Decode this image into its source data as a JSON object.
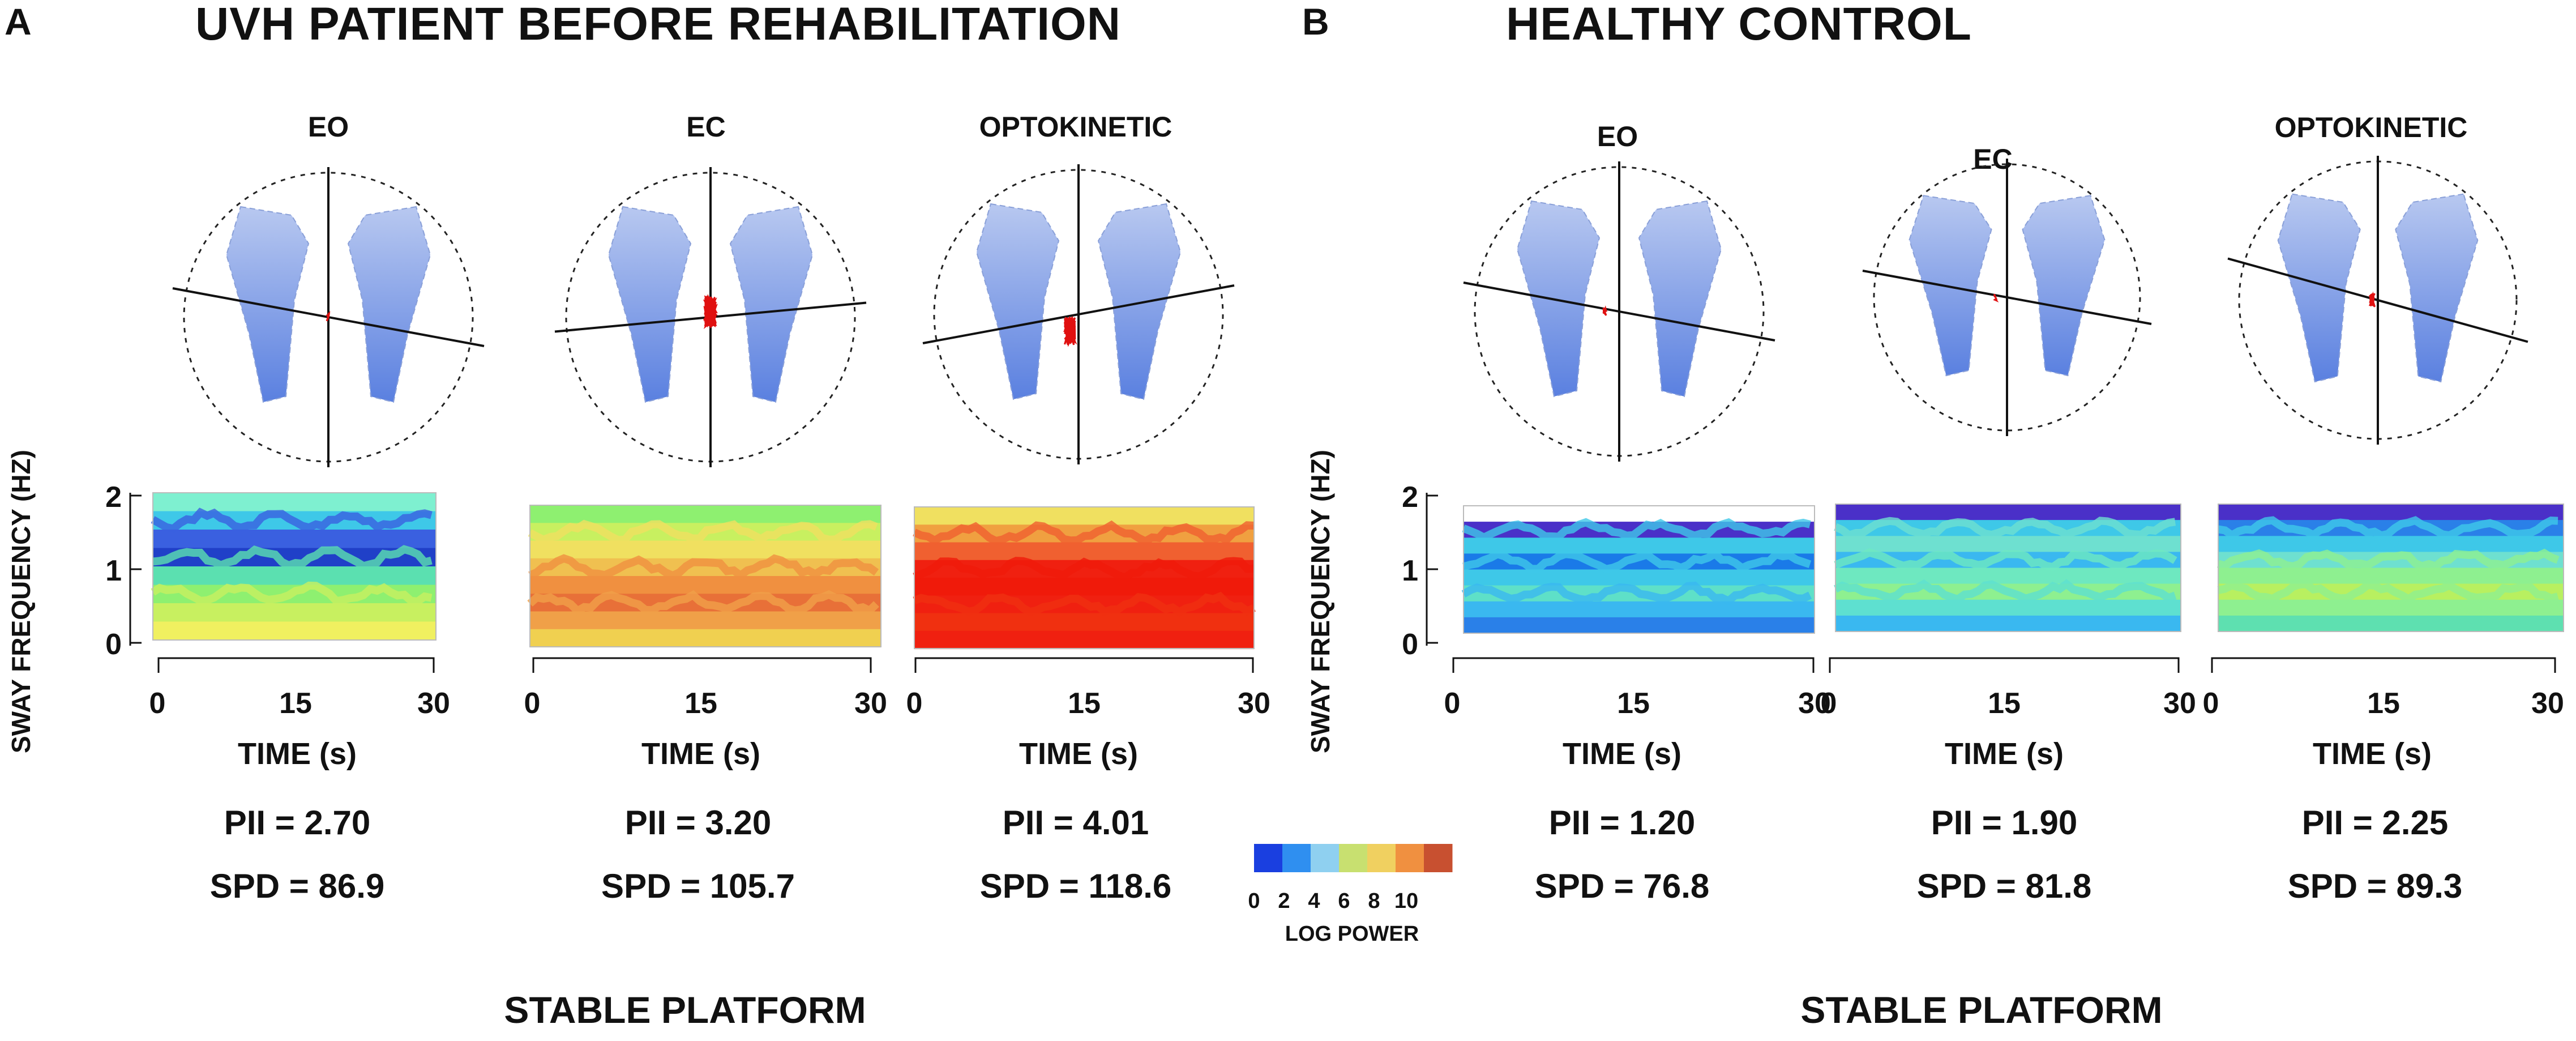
{
  "panel_a": {
    "letter": "A",
    "title": "UVH PATIENT BEFORE REHABILITATION",
    "platform": "STABLE PLATFORM",
    "conditions": [
      {
        "label": "EO",
        "pii": "PII = 2.70",
        "spd": "SPD = 86.9"
      },
      {
        "label": "EC",
        "pii": "PII = 3.20",
        "spd": "SPD = 105.7"
      },
      {
        "label": "OPTOKINETIC",
        "pii": "PII = 4.01",
        "spd": "SPD = 118.6"
      }
    ]
  },
  "panel_b": {
    "letter": "B",
    "title": "HEALTHY CONTROL",
    "platform": "STABLE PLATFORM",
    "conditions": [
      {
        "label": "EO",
        "pii": "PII = 1.20",
        "spd": "SPD = 76.8"
      },
      {
        "label": "EC",
        "pii": "PII = 1.90",
        "spd": "SPD = 81.8"
      },
      {
        "label": "OPTOKINETIC",
        "pii": "PII = 2.25",
        "spd": "SPD = 89.3"
      }
    ]
  },
  "axes": {
    "ylabel": "SWAY FREQUENCY (HZ)",
    "y_ticks": [
      "0",
      "1",
      "2"
    ],
    "x_ticks": [
      "0",
      "15",
      "30"
    ],
    "xlabel": "TIME (s)"
  },
  "colorbar": {
    "title": "LOG POWER",
    "ticks": [
      "0",
      "2",
      "4",
      "6",
      "8",
      "10"
    ],
    "colors": [
      "#1a3fe0",
      "#2f8ff0",
      "#8fd0f0",
      "#c8e070",
      "#f0d060",
      "#f09040",
      "#c85030"
    ]
  }
}
